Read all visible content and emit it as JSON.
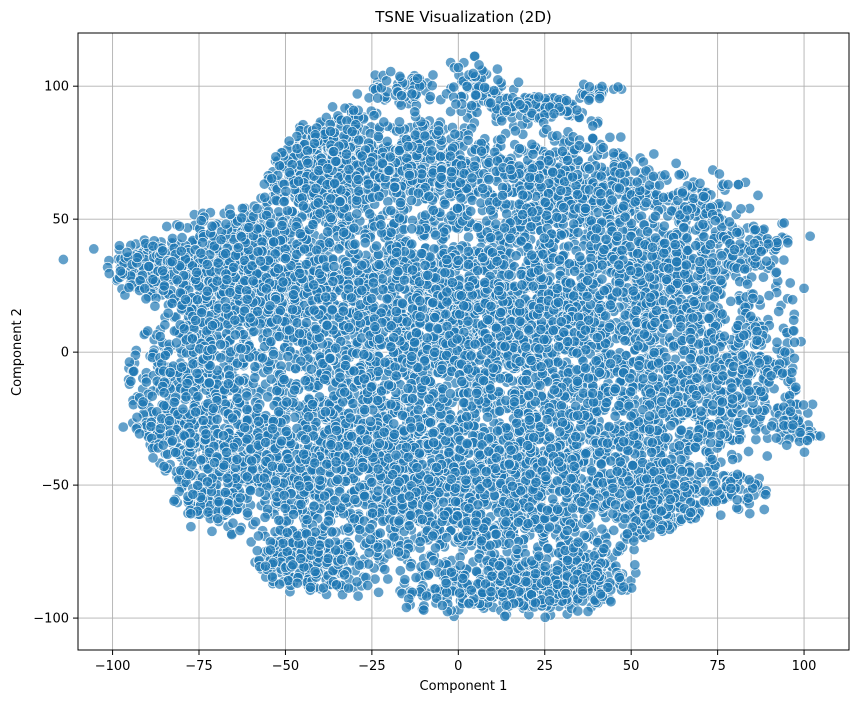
{
  "chart_data": {
    "type": "scatter",
    "title": "TSNE Visualization (2D)",
    "xlabel": "Component 1",
    "ylabel": "Component 2",
    "xlim": [
      -110,
      113
    ],
    "ylim": [
      -112,
      120
    ],
    "xticks": [
      -100,
      -75,
      -50,
      -25,
      0,
      25,
      50,
      75,
      100
    ],
    "yticks": [
      -100,
      -50,
      0,
      50,
      100
    ],
    "xtick_labels": [
      "−100",
      "−75",
      "−50",
      "−25",
      "0",
      "25",
      "50",
      "75",
      "100"
    ],
    "ytick_labels": [
      "−100",
      "−50",
      "0",
      "50",
      "100"
    ],
    "grid": true,
    "legend": "none",
    "marker_color": "#1f77b4",
    "marker_edge_color": "#ffffff",
    "marker_alpha": 0.7,
    "approx_point_count": 8000,
    "clusters": [
      {
        "cx": -90,
        "cy": 32,
        "sx": 6,
        "sy": 6,
        "n": 120
      },
      {
        "cx": -65,
        "cy": 30,
        "sx": 13,
        "sy": 12,
        "n": 650
      },
      {
        "cx": -78,
        "cy": -12,
        "sx": 12,
        "sy": 17,
        "n": 500
      },
      {
        "cx": -88,
        "cy": -30,
        "sx": 4,
        "sy": 3,
        "n": 30
      },
      {
        "cx": -60,
        "cy": -40,
        "sx": 13,
        "sy": 12,
        "n": 400
      },
      {
        "cx": -72,
        "cy": -58,
        "sx": 5,
        "sy": 4,
        "n": 70
      },
      {
        "cx": -45,
        "cy": -80,
        "sx": 9,
        "sy": 7,
        "n": 230
      },
      {
        "cx": -38,
        "cy": 70,
        "sx": 12,
        "sy": 12,
        "n": 500
      },
      {
        "cx": -35,
        "cy": 15,
        "sx": 18,
        "sy": 20,
        "n": 950
      },
      {
        "cx": -30,
        "cy": -40,
        "sx": 18,
        "sy": 20,
        "n": 850
      },
      {
        "cx": -8,
        "cy": 70,
        "sx": 14,
        "sy": 11,
        "n": 400
      },
      {
        "cx": -15,
        "cy": 98,
        "sx": 5,
        "sy": 4,
        "n": 60
      },
      {
        "cx": 5,
        "cy": 100,
        "sx": 5,
        "sy": 5,
        "n": 70
      },
      {
        "cx": 0,
        "cy": 15,
        "sx": 15,
        "sy": 22,
        "n": 900
      },
      {
        "cx": 0,
        "cy": -55,
        "sx": 16,
        "sy": 18,
        "n": 700
      },
      {
        "cx": 10,
        "cy": -90,
        "sx": 12,
        "sy": 5,
        "n": 200
      },
      {
        "cx": 28,
        "cy": 95,
        "sx": 10,
        "sy": 4,
        "n": 110
      },
      {
        "cx": 35,
        "cy": 62,
        "sx": 15,
        "sy": 10,
        "n": 500
      },
      {
        "cx": 30,
        "cy": 10,
        "sx": 15,
        "sy": 20,
        "n": 850
      },
      {
        "cx": 30,
        "cy": -45,
        "sx": 15,
        "sy": 18,
        "n": 700
      },
      {
        "cx": 35,
        "cy": -85,
        "sx": 10,
        "sy": 7,
        "n": 220
      },
      {
        "cx": 62,
        "cy": 30,
        "sx": 13,
        "sy": 16,
        "n": 550
      },
      {
        "cx": 65,
        "cy": -20,
        "sx": 14,
        "sy": 18,
        "n": 550
      },
      {
        "cx": 60,
        "cy": -58,
        "sx": 10,
        "sy": 8,
        "n": 200
      },
      {
        "cx": 85,
        "cy": 38,
        "sx": 6,
        "sy": 5,
        "n": 90
      },
      {
        "cx": 86,
        "cy": -5,
        "sx": 8,
        "sy": 12,
        "n": 180
      },
      {
        "cx": 97,
        "cy": -28,
        "sx": 3,
        "sy": 4,
        "n": 55
      },
      {
        "cx": 80,
        "cy": -52,
        "sx": 5,
        "sy": 4,
        "n": 50
      },
      {
        "cx": 70,
        "cy": 55,
        "sx": 6,
        "sy": 5,
        "n": 70
      },
      {
        "cx": 40,
        "cy": 98,
        "sx": 3,
        "sy": 2,
        "n": 20
      }
    ],
    "outliers": [
      {
        "x": 100,
        "y": 24
      },
      {
        "x": 96,
        "y": 26
      },
      {
        "x": 92,
        "y": 30
      },
      {
        "x": 81,
        "y": 63
      },
      {
        "x": 78,
        "y": 63
      },
      {
        "x": 63,
        "y": 71
      },
      {
        "x": -10,
        "y": -97
      },
      {
        "x": -15,
        "y": -96
      },
      {
        "x": 0,
        "y": 107
      },
      {
        "x": 6,
        "y": 108
      },
      {
        "x": 97,
        "y": 8
      },
      {
        "x": 95,
        "y": -35
      }
    ],
    "hull": [
      [
        -100,
        30
      ],
      [
        -95,
        43
      ],
      [
        -80,
        52
      ],
      [
        -60,
        55
      ],
      [
        -52,
        76
      ],
      [
        -45,
        86
      ],
      [
        -35,
        94
      ],
      [
        -20,
        92
      ],
      [
        -10,
        88
      ],
      [
        0,
        92
      ],
      [
        15,
        96
      ],
      [
        30,
        96
      ],
      [
        45,
        83
      ],
      [
        60,
        72
      ],
      [
        75,
        58
      ],
      [
        88,
        45
      ],
      [
        92,
        25
      ],
      [
        98,
        22
      ],
      [
        100,
        15
      ],
      [
        99,
        -20
      ],
      [
        103,
        -28
      ],
      [
        100,
        -35
      ],
      [
        88,
        -38
      ],
      [
        78,
        -55
      ],
      [
        68,
        -63
      ],
      [
        55,
        -70
      ],
      [
        50,
        -90
      ],
      [
        40,
        -97
      ],
      [
        25,
        -101
      ],
      [
        5,
        -101
      ],
      [
        -10,
        -97
      ],
      [
        -25,
        -92
      ],
      [
        -40,
        -92
      ],
      [
        -50,
        -90
      ],
      [
        -58,
        -84
      ],
      [
        -60,
        -72
      ],
      [
        -73,
        -66
      ],
      [
        -80,
        -55
      ],
      [
        -88,
        -42
      ],
      [
        -93,
        -30
      ],
      [
        -96,
        -10
      ],
      [
        -95,
        0
      ],
      [
        -90,
        8
      ],
      [
        -85,
        15
      ],
      [
        -98,
        25
      ]
    ]
  }
}
